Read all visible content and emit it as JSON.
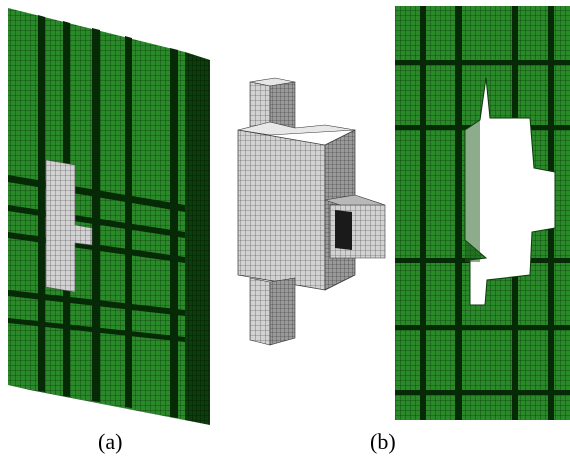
{
  "captions": {
    "a": "(a)",
    "b": "(b)"
  },
  "colors": {
    "panel_green": "#1f7a1f",
    "panel_dark": "#0a3a0a",
    "mesh_gray": "#c8c8c8",
    "mesh_line": "#3a3a3a",
    "background": "#ffffff"
  }
}
